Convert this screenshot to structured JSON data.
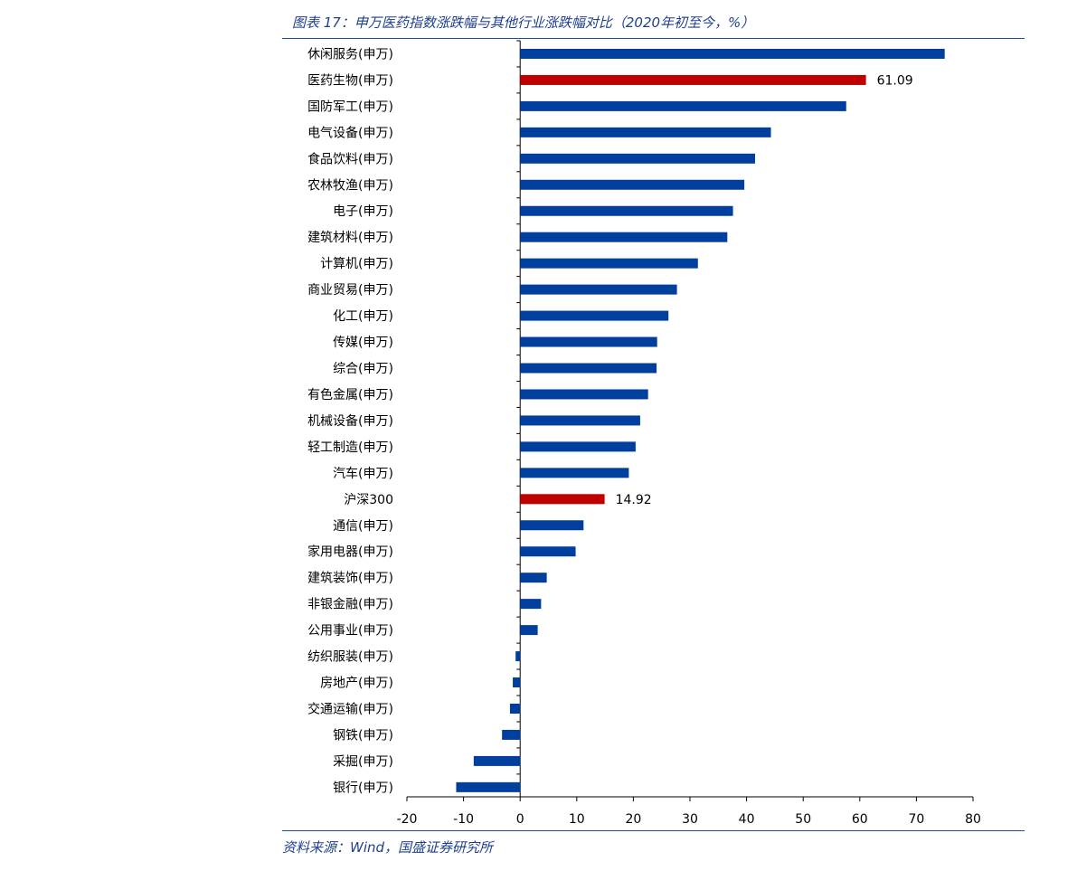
{
  "title": "图表 17：申万医药指数涨跌幅与其他行业涨跌幅对比（2020年初至今，%）",
  "source": "资料来源：Wind，国盛证券研究所",
  "colors": {
    "bar": "#003f9e",
    "highlight": "#c00000",
    "rule": "#1f4e96",
    "title_text": "#1f3f8f"
  },
  "chart_data": {
    "type": "bar",
    "orientation": "horizontal",
    "title": "图表 17：申万医药指数涨跌幅与其他行业涨跌幅对比（2020年初至今，%）",
    "xlabel": "",
    "ylabel": "",
    "xlim": [
      -20,
      80
    ],
    "xticks": [
      -20,
      -10,
      0,
      10,
      20,
      30,
      40,
      50,
      60,
      70,
      80
    ],
    "grid": false,
    "legend": "none",
    "categories": [
      "休闲服务(申万)",
      "医药生物(申万)",
      "国防军工(申万)",
      "电气设备(申万)",
      "食品饮料(申万)",
      "农林牧渔(申万)",
      "电子(申万)",
      "建筑材料(申万)",
      "计算机(申万)",
      "商业贸易(申万)",
      "化工(申万)",
      "传媒(申万)",
      "综合(申万)",
      "有色金属(申万)",
      "机械设备(申万)",
      "轻工制造(申万)",
      "汽车(申万)",
      "沪深300",
      "通信(申万)",
      "家用电器(申万)",
      "建筑装饰(申万)",
      "非银金融(申万)",
      "公用事业(申万)",
      "纺织服装(申万)",
      "房地产(申万)",
      "交通运输(申万)",
      "钢铁(申万)",
      "采掘(申万)",
      "银行(申万)"
    ],
    "values": [
      75.0,
      61.09,
      57.6,
      44.3,
      41.5,
      39.6,
      37.6,
      36.6,
      31.4,
      27.7,
      26.2,
      24.2,
      24.1,
      22.6,
      21.2,
      20.4,
      19.2,
      14.92,
      11.2,
      9.8,
      4.7,
      3.7,
      3.1,
      -0.8,
      -1.3,
      -1.8,
      -3.2,
      -8.2,
      -11.3
    ],
    "highlight": [
      "医药生物(申万)",
      "沪深300"
    ],
    "data_labels": [
      {
        "category": "医药生物(申万)",
        "text": "61.09"
      },
      {
        "category": "沪深300",
        "text": "14.92"
      }
    ]
  }
}
